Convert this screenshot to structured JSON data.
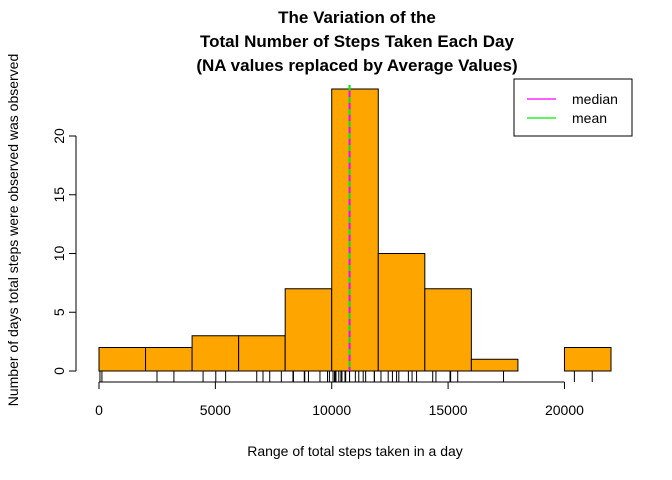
{
  "chart_data": {
    "type": "bar",
    "title_lines": [
      "The Variation of the",
      "Total Number of Steps Taken Each Day",
      "(NA values replaced by Average Values)"
    ],
    "xlabel": "Range of total steps taken in a day",
    "ylabel": "Number of days total steps were observed was observed",
    "bins": [
      {
        "start": 0,
        "end": 2000,
        "count": 2
      },
      {
        "start": 2000,
        "end": 4000,
        "count": 2
      },
      {
        "start": 4000,
        "end": 6000,
        "count": 3
      },
      {
        "start": 6000,
        "end": 8000,
        "count": 3
      },
      {
        "start": 8000,
        "end": 10000,
        "count": 7
      },
      {
        "start": 10000,
        "end": 12000,
        "count": 24
      },
      {
        "start": 12000,
        "end": 14000,
        "count": 10
      },
      {
        "start": 14000,
        "end": 16000,
        "count": 7
      },
      {
        "start": 16000,
        "end": 18000,
        "count": 1
      },
      {
        "start": 18000,
        "end": 20000,
        "count": 0
      },
      {
        "start": 20000,
        "end": 22000,
        "count": 2
      }
    ],
    "xlim": [
      0,
      22000
    ],
    "ylim": [
      0,
      24
    ],
    "x_ticks": [
      0,
      5000,
      10000,
      15000,
      20000
    ],
    "x_tick_labels": [
      "0",
      "5000",
      "10000",
      "15000",
      "20000"
    ],
    "y_ticks": [
      0,
      5,
      10,
      15,
      20
    ],
    "y_tick_labels": [
      "0",
      "5",
      "10",
      "15",
      "20"
    ],
    "rug": [
      41,
      126,
      2492,
      3219,
      4472,
      5018,
      5441,
      6778,
      7047,
      7336,
      7835,
      8334,
      8355,
      8821,
      8841,
      9000,
      9494,
      9819,
      9900,
      10056,
      10119,
      10139,
      10183,
      10304,
      10395,
      10439,
      10571,
      10600,
      10765,
      10766,
      11015,
      11162,
      11352,
      11458,
      11829,
      11834,
      12116,
      12426,
      12608,
      12787,
      12883,
      13294,
      13452,
      13646,
      14339,
      14478,
      15084,
      15098,
      15110,
      15414,
      17382,
      20427,
      21194
    ],
    "vlines": [
      {
        "key": "median",
        "value": 10766.19,
        "color": "#ff00ff"
      },
      {
        "key": "mean",
        "value": 10766.19,
        "color": "#00ee00"
      }
    ],
    "bar_color": "#ffa500",
    "legend": {
      "placement": "top-right",
      "entries": [
        {
          "label": "median",
          "color": "#ff00ff"
        },
        {
          "label": "mean",
          "color": "#00ee00"
        }
      ]
    }
  }
}
